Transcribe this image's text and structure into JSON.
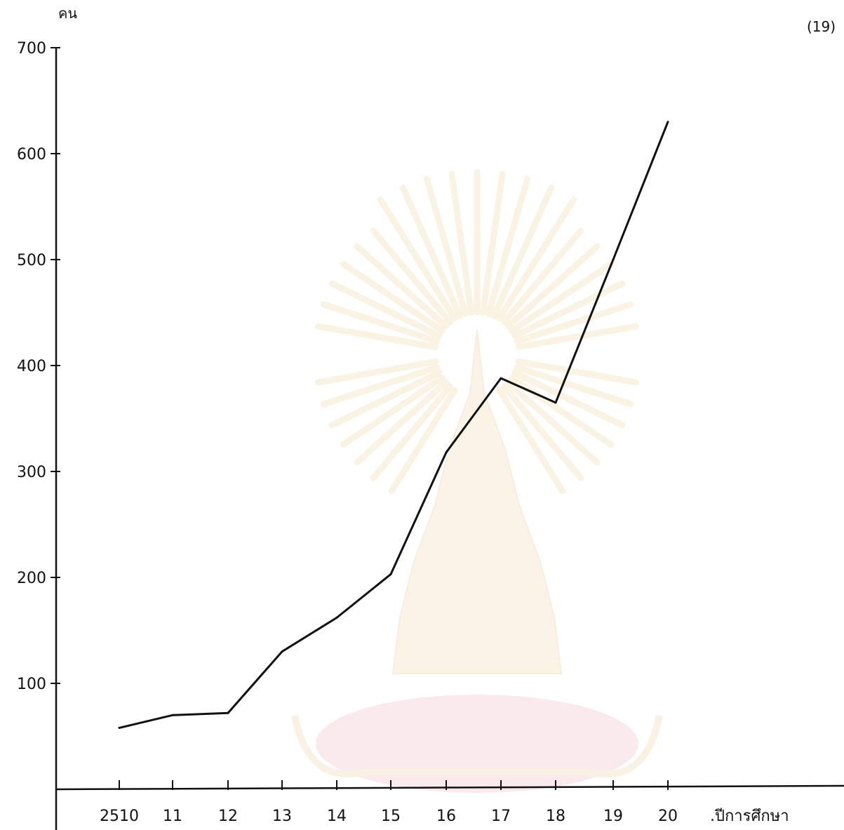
{
  "page_number": "(19)",
  "chart_data": {
    "type": "line",
    "ylabel": "คน",
    "xlabel": ".ปีการศึกษา",
    "ylim": [
      0,
      700
    ],
    "yticks": [
      100,
      200,
      300,
      400,
      500,
      600,
      700
    ],
    "ytick_labels": [
      "100",
      "200",
      "300",
      "400",
      "500",
      "600",
      "700"
    ],
    "categories": [
      "2510",
      "11",
      "12",
      "13",
      "14",
      "15",
      "16",
      "17",
      "18",
      "19",
      "20"
    ],
    "x_tick_labels": [
      "2510",
      "11",
      "12",
      "13",
      "14",
      "15",
      "16",
      "17",
      "18",
      "19",
      "20"
    ],
    "series": [
      {
        "values": [
          58,
          70,
          72,
          130,
          162,
          203,
          318,
          388,
          365,
          500,
          630
        ]
      }
    ],
    "grid": false,
    "legend": "none",
    "line_color": "#111111"
  }
}
